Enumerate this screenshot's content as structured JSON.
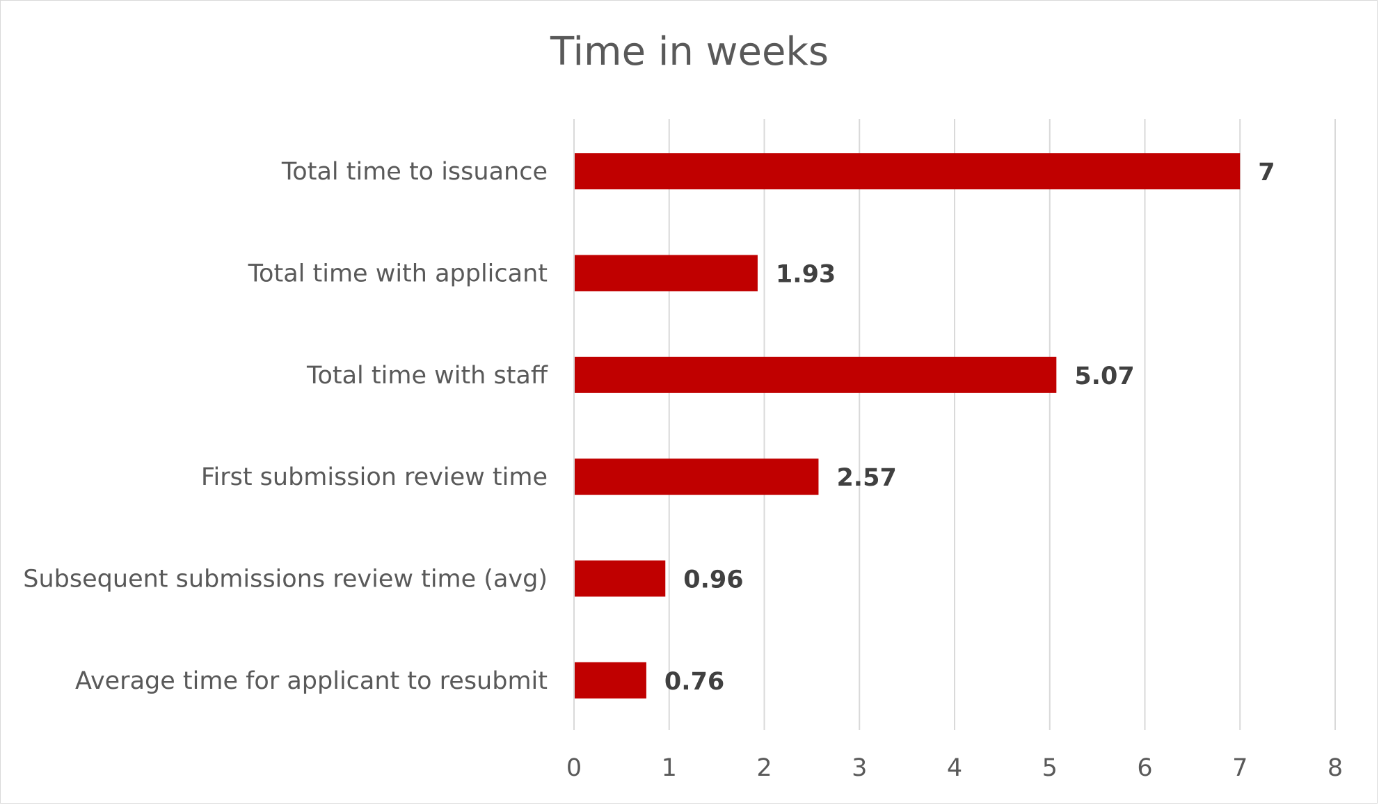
{
  "chart_data": {
    "type": "bar",
    "orientation": "horizontal",
    "title": "Time in weeks",
    "xlabel": "",
    "ylabel": "",
    "categories": [
      "Total time to issuance",
      "Total time with applicant",
      "Total time with staff",
      "First submission review time",
      "Subsequent submissions review time (avg)",
      "Average time for applicant to resubmit"
    ],
    "values": [
      7,
      1.93,
      5.07,
      2.57,
      0.96,
      0.76
    ],
    "data_labels": [
      "7",
      "1.93",
      "5.07",
      "2.57",
      "0.96",
      "0.76"
    ],
    "xlim": [
      0,
      8
    ],
    "x_ticks": [
      "0",
      "1",
      "2",
      "3",
      "4",
      "5",
      "6",
      "7",
      "8"
    ],
    "grid": true,
    "legend": "none",
    "colors": {
      "bar": "#c00000",
      "gridline": "#d9d9d9",
      "text": "#595959",
      "data_label": "#404040"
    }
  }
}
